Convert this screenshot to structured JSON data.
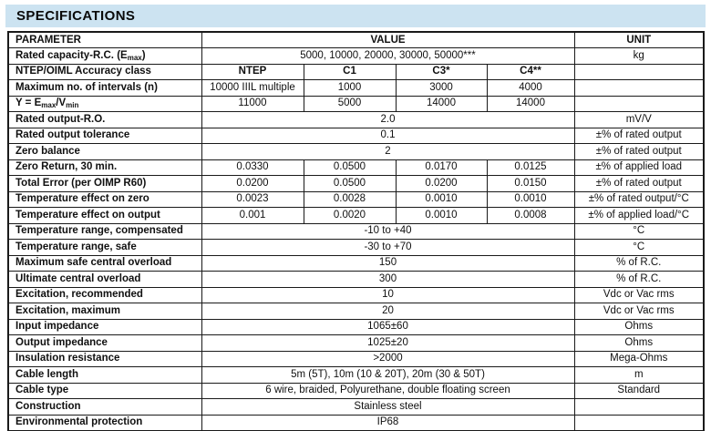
{
  "page": {
    "title": "SPECIFICATIONS",
    "band_color": "#cce3f1",
    "border_color": "#1a1a1a"
  },
  "table": {
    "header": {
      "parameter": "PARAMETER",
      "value": "VALUE",
      "unit": "UNIT"
    },
    "rows": [
      {
        "param": "Rated capacity-R.C. (E~max~)",
        "values": [
          "5000, 10000, 20000, 30000, 50000***"
        ],
        "unit": "kg"
      },
      {
        "param": "NTEP/OIML Accuracy class",
        "values": [
          "NTEP",
          "C1",
          "C3*",
          "C4**"
        ],
        "bold_values": true,
        "unit": ""
      },
      {
        "param": "Maximum no. of intervals (n)",
        "values": [
          "10000 IIIL multiple",
          "1000",
          "3000",
          "4000"
        ],
        "unit": ""
      },
      {
        "param": "Y = E~max~/V~min~",
        "values": [
          "11000",
          "5000",
          "14000",
          "14000"
        ],
        "unit": ""
      },
      {
        "param": "Rated output-R.O.",
        "values": [
          "2.0"
        ],
        "unit": "mV/V"
      },
      {
        "param": "Rated output tolerance",
        "values": [
          "0.1"
        ],
        "unit": "±% of rated output"
      },
      {
        "param": "Zero balance",
        "values": [
          "2"
        ],
        "unit": "±% of rated output"
      },
      {
        "param": "Zero Return, 30 min.",
        "values": [
          "0.0330",
          "0.0500",
          "0.0170",
          "0.0125"
        ],
        "unit": "±% of applied load"
      },
      {
        "param": "Total Error (per OIMP R60)",
        "values": [
          "0.0200",
          "0.0500",
          "0.0200",
          "0.0150"
        ],
        "unit": "±% of rated output"
      },
      {
        "param": "Temperature effect on zero",
        "values": [
          "0.0023",
          "0.0028",
          "0.0010",
          "0.0010"
        ],
        "unit": "±% of rated output/°C"
      },
      {
        "param": "Temperature effect on output",
        "values": [
          "0.001",
          "0.0020",
          "0.0010",
          "0.0008"
        ],
        "unit": "±% of applied load/°C"
      },
      {
        "param": "Temperature range, compensated",
        "values": [
          "-10 to +40"
        ],
        "unit": "°C"
      },
      {
        "param": "Temperature range, safe",
        "values": [
          "-30 to +70"
        ],
        "unit": "°C"
      },
      {
        "param": "Maximum safe central overload",
        "values": [
          "150"
        ],
        "unit": "% of R.C."
      },
      {
        "param": "Ultimate central overload",
        "values": [
          "300"
        ],
        "unit": "% of R.C."
      },
      {
        "param": "Excitation, recommended",
        "values": [
          "10"
        ],
        "unit": "Vdc or Vac rms"
      },
      {
        "param": "Excitation, maximum",
        "values": [
          "20"
        ],
        "unit": "Vdc or Vac rms"
      },
      {
        "param": "Input impedance",
        "values": [
          "1065±60"
        ],
        "unit": "Ohms"
      },
      {
        "param": "Output impedance",
        "values": [
          "1025±20"
        ],
        "unit": "Ohms"
      },
      {
        "param": "Insulation resistance",
        "values": [
          ">2000"
        ],
        "unit": "Mega-Ohms"
      },
      {
        "param": "Cable length",
        "values": [
          "5m (5T), 10m (10 & 20T), 20m (30 & 50T)"
        ],
        "unit": "m"
      },
      {
        "param": "Cable type",
        "values": [
          "6 wire, braided, Polyurethane, double floating screen"
        ],
        "unit": "Standard"
      },
      {
        "param": "Construction",
        "values": [
          "Stainless steel"
        ],
        "unit": ""
      },
      {
        "param": "Environmental protection",
        "values": [
          "IP68"
        ],
        "unit": ""
      }
    ]
  }
}
